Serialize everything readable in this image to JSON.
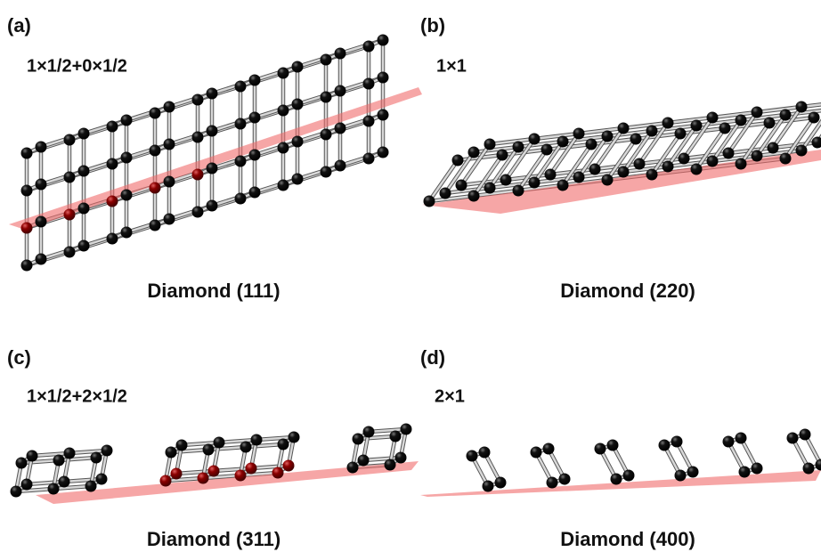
{
  "panels": [
    {
      "label": "(a)",
      "reconstruction": "1×1/2+0×1/2",
      "caption": "Diamond (111)"
    },
    {
      "label": "(b)",
      "reconstruction": "1×1",
      "caption": "Diamond (220)"
    },
    {
      "label": "(c)",
      "reconstruction": "1×1/2+2×1/2",
      "caption": "Diamond (311)"
    },
    {
      "label": "(d)",
      "reconstruction": "2×1",
      "caption": "Diamond (400)"
    }
  ]
}
